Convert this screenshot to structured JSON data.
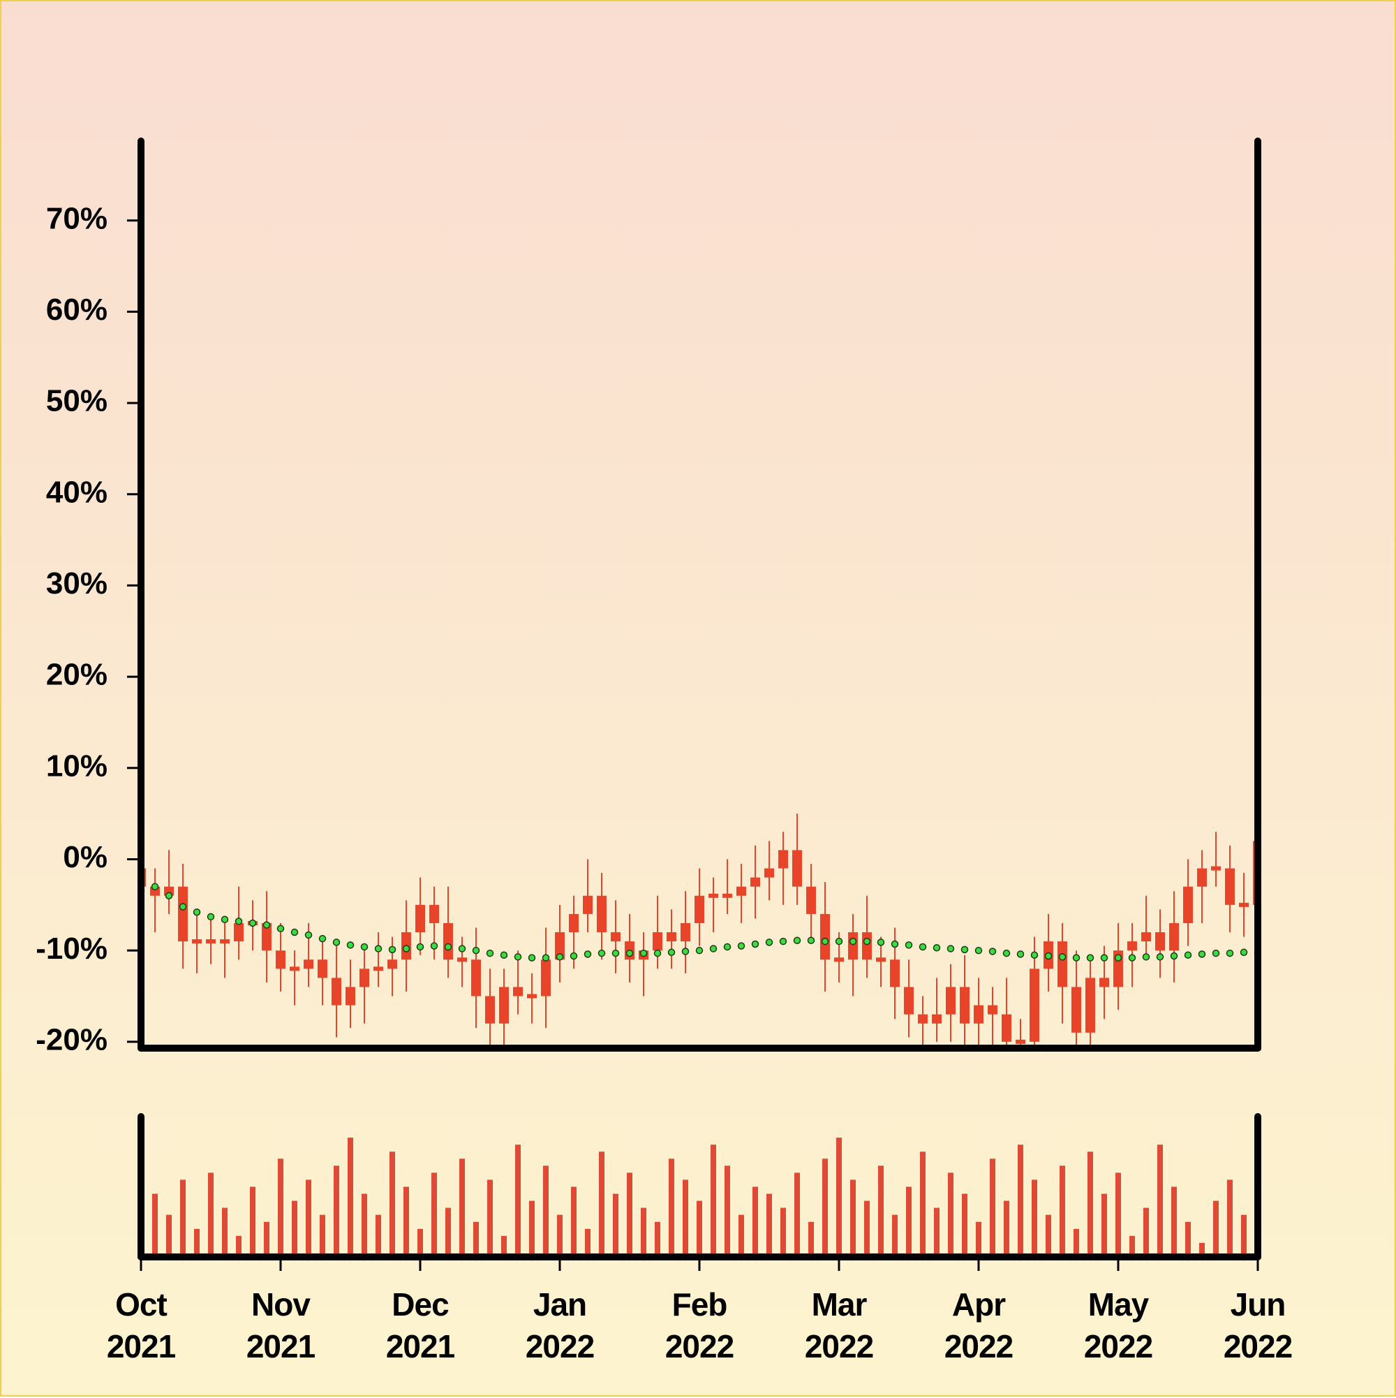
{
  "chart_data": {
    "type": "candlestick",
    "color": "#e8442a",
    "xlim": [
      0,
      8
    ],
    "xticks": [
      {
        "value": 0,
        "label": "Oct 2021"
      },
      {
        "value": 1,
        "label": "Nov 2021"
      },
      {
        "value": 2,
        "label": "Dec 2021"
      },
      {
        "value": 3,
        "label": "Jan 2022"
      },
      {
        "value": 4,
        "label": "Feb 2022"
      },
      {
        "value": 5,
        "label": "Mar 2022"
      },
      {
        "value": 6,
        "label": "Apr 2022"
      },
      {
        "value": 7,
        "label": "May 2022"
      },
      {
        "value": 8,
        "label": "Jun 2022"
      }
    ],
    "ylim": [
      -20.7,
      78.7
    ],
    "yticks": [
      {
        "value": -20,
        "label": "-20%"
      },
      {
        "value": -10,
        "label": "-10%"
      },
      {
        "value": 0,
        "label": "0%"
      },
      {
        "value": 10,
        "label": "10%"
      },
      {
        "value": 20,
        "label": "20%"
      },
      {
        "value": 30,
        "label": "30%"
      },
      {
        "value": 40,
        "label": "40%"
      },
      {
        "value": 50,
        "label": "50%"
      },
      {
        "value": 60,
        "label": "60%"
      },
      {
        "value": 70,
        "label": "70%"
      }
    ],
    "x": [
      0,
      0.1,
      0.2,
      0.3,
      0.4,
      0.5,
      0.6,
      0.7,
      0.8,
      0.9,
      1,
      1.1,
      1.2,
      1.3,
      1.4,
      1.5,
      1.6,
      1.7,
      1.8,
      1.9,
      2,
      2.1,
      2.2,
      2.3,
      2.4,
      2.5,
      2.6,
      2.7,
      2.8,
      2.9,
      3,
      3.1,
      3.2,
      3.3,
      3.4,
      3.5,
      3.6,
      3.7,
      3.8,
      3.9,
      4,
      4.1,
      4.2,
      4.3,
      4.4,
      4.5,
      4.6,
      4.7,
      4.8,
      4.9,
      5,
      5.1,
      5.2,
      5.3,
      5.4,
      5.5,
      5.6,
      5.7,
      5.8,
      5.9,
      6,
      6.1,
      6.2,
      6.3,
      6.4,
      6.5,
      6.6,
      6.7,
      6.8,
      6.9,
      7,
      7.1,
      7.2,
      7.3,
      7.4,
      7.5,
      7.6,
      7.7,
      7.8,
      7.9,
      8
    ],
    "open": [
      -1,
      -3,
      -4,
      -3,
      -9,
      -9,
      -9,
      -9,
      -7,
      -7,
      -10,
      -12,
      -12,
      -11,
      -13,
      -16,
      -14,
      -12,
      -12,
      -11,
      -8,
      -5,
      -7,
      -11,
      -11,
      -15,
      -18,
      -14,
      -15,
      -15,
      -11,
      -8,
      -6,
      -4,
      -8,
      -9,
      -11,
      -10,
      -8,
      -9,
      -7,
      -4,
      -4,
      -4,
      -3,
      -2,
      -1,
      1,
      -3,
      -6,
      -11,
      -11,
      -8,
      -11,
      -11,
      -14,
      -17,
      -18,
      -17,
      -14,
      -18,
      -16,
      -17,
      -20,
      -20,
      -12,
      -9,
      -14,
      -19,
      -13,
      -14,
      -10,
      -9,
      -8,
      -10,
      -7,
      -3,
      -1,
      -1,
      -5,
      -5
    ],
    "high": [
      2,
      -1,
      1,
      -0.5,
      -5.5,
      -6,
      -7,
      -3,
      -4.5,
      -3.5,
      -7,
      -10,
      -7,
      -8.5,
      -9.5,
      -11,
      -10,
      -8,
      -8.5,
      -4.5,
      -2,
      -3,
      -3,
      -8.5,
      -7.5,
      -12,
      -12,
      -10,
      -12.5,
      -7.5,
      -5,
      -4,
      0,
      -1.5,
      -4.5,
      -6,
      -8,
      -4,
      -5.5,
      -3.5,
      -1,
      -2,
      0,
      -0.5,
      1.5,
      2,
      3,
      5,
      -0.5,
      -2.5,
      -8,
      -6,
      -4,
      -8.5,
      -7.5,
      -11,
      -15,
      -13,
      -11.5,
      -10.5,
      -13,
      -14,
      -13,
      -17.5,
      -8.5,
      -6,
      -7,
      -10,
      -10.5,
      -9.5,
      -7,
      -7,
      -4,
      -5.5,
      -3.5,
      0,
      1,
      3,
      1.5,
      -1.5,
      5
    ],
    "low": [
      -5.5,
      -8,
      -6,
      -12,
      -12.5,
      -11.5,
      -13,
      -11,
      -10,
      -13.5,
      -14.5,
      -16,
      -14,
      -16,
      -19.5,
      -18.5,
      -18,
      -14,
      -15,
      -14.5,
      -10.5,
      -11,
      -13,
      -14,
      -18.5,
      -20.5,
      -22,
      -17,
      -18,
      -18.5,
      -13.5,
      -12,
      -8,
      -11,
      -12.5,
      -13.5,
      -15,
      -12,
      -12,
      -12.5,
      -9.5,
      -8,
      -6,
      -7,
      -6.5,
      -4.5,
      -5,
      -5,
      -9,
      -14.5,
      -13.5,
      -15,
      -13,
      -14,
      -17.5,
      -19.5,
      -22,
      -20,
      -20,
      -21.5,
      -20.5,
      -21,
      -22,
      -23,
      -23.5,
      -14.5,
      -18,
      -21,
      -22,
      -17.5,
      -16.5,
      -14,
      -11,
      -13,
      -13.5,
      -9.5,
      -7,
      -3,
      -8,
      -8.5,
      -7.5
    ],
    "close": [
      -3,
      -4,
      -3,
      -9,
      -9,
      -9,
      -9,
      -7,
      -7,
      -10,
      -12,
      -12,
      -11,
      -13,
      -16,
      -14,
      -12,
      -12,
      -11,
      -8,
      -5,
      -7,
      -11,
      -11,
      -15,
      -18,
      -14,
      -15,
      -15,
      -11,
      -8,
      -6,
      -4,
      -8,
      -9,
      -11,
      -10,
      -8,
      -9,
      -7,
      -4,
      -4,
      -4,
      -3,
      -2,
      -1,
      1,
      -3,
      -6,
      -11,
      -11,
      -8,
      -11,
      -11,
      -14,
      -17,
      -18,
      -17,
      -14,
      -18,
      -16,
      -17,
      -20,
      -20,
      -12,
      -9,
      -14,
      -19,
      -13,
      -14,
      -10,
      -9,
      -8,
      -10,
      -7,
      -3,
      -1,
      -1,
      -5,
      -5,
      2
    ],
    "moving_average": {
      "color": "#3ddc3d",
      "values": [
        -3.5,
        -3,
        -4,
        -5.2,
        -5.8,
        -6.3,
        -6.6,
        -6.8,
        -7,
        -7.2,
        -7.6,
        -8,
        -8.3,
        -8.7,
        -9.1,
        -9.4,
        -9.6,
        -9.8,
        -9.9,
        -9.8,
        -9.6,
        -9.5,
        -9.6,
        -9.8,
        -10,
        -10.3,
        -10.5,
        -10.7,
        -10.8,
        -10.8,
        -10.7,
        -10.6,
        -10.4,
        -10.3,
        -10.3,
        -10.3,
        -10.3,
        -10.3,
        -10.2,
        -10.1,
        -10,
        -9.8,
        -9.6,
        -9.5,
        -9.3,
        -9.1,
        -9,
        -8.9,
        -8.9,
        -9,
        -9,
        -9,
        -9,
        -9.1,
        -9.3,
        -9.4,
        -9.6,
        -9.7,
        -9.8,
        -9.9,
        -10,
        -10.1,
        -10.3,
        -10.4,
        -10.5,
        -10.6,
        -10.7,
        -10.8,
        -10.8,
        -10.8,
        -10.8,
        -10.8,
        -10.7,
        -10.7,
        -10.6,
        -10.5,
        -10.4,
        -10.3,
        -10.3,
        -10.2,
        -10.2
      ]
    },
    "volume": {
      "color": "#e04a35",
      "ylim": [
        0,
        100
      ],
      "values": [
        80,
        45,
        30,
        55,
        20,
        60,
        35,
        15,
        50,
        25,
        70,
        40,
        55,
        30,
        65,
        85,
        45,
        30,
        75,
        50,
        20,
        60,
        35,
        70,
        25,
        55,
        15,
        80,
        40,
        65,
        30,
        50,
        20,
        75,
        45,
        60,
        35,
        25,
        70,
        55,
        40,
        80,
        65,
        30,
        50,
        45,
        35,
        60,
        25,
        70,
        85,
        55,
        40,
        65,
        30,
        50,
        75,
        35,
        60,
        45,
        25,
        70,
        40,
        80,
        55,
        30,
        65,
        20,
        75,
        45,
        60,
        15,
        35,
        80,
        50,
        25,
        10,
        40,
        55,
        30,
        70
      ]
    }
  }
}
